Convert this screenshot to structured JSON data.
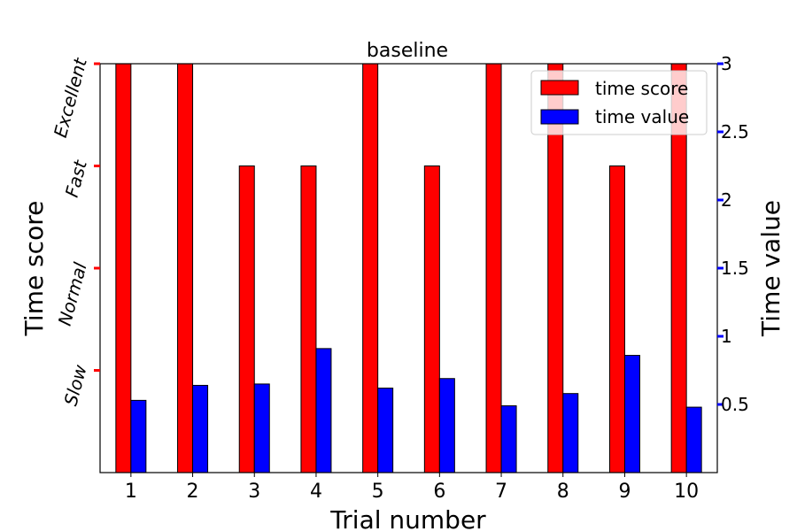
{
  "chart_data": {
    "type": "bar",
    "title": "baseline",
    "xlabel": "Trial number",
    "ylabel_left": "Time score",
    "ylabel_right": "Time value",
    "categories": [
      "1",
      "2",
      "3",
      "4",
      "5",
      "6",
      "7",
      "8",
      "9",
      "10"
    ],
    "left_axis": {
      "ylim": [
        0,
        4
      ],
      "ticks": [
        1,
        2,
        3,
        4
      ],
      "tick_labels": [
        "Slow",
        "Normal",
        "Fast",
        "Excellent"
      ],
      "tick_color": "#ff0000"
    },
    "right_axis": {
      "ylim": [
        0,
        3
      ],
      "ticks": [
        0.5,
        1,
        1.5,
        2,
        2.5,
        3
      ],
      "tick_labels": [
        "0.5",
        "1",
        "1.5",
        "2",
        "2.5",
        "3"
      ],
      "tick_color": "#0000ff"
    },
    "series": [
      {
        "name": "time score",
        "axis": "left",
        "color": "#ff0000",
        "values": [
          4,
          4,
          3,
          3,
          4,
          3,
          4,
          4,
          3,
          4
        ]
      },
      {
        "name": "time value",
        "axis": "right",
        "color": "#0000ff",
        "values": [
          0.53,
          0.64,
          0.65,
          0.91,
          0.62,
          0.69,
          0.49,
          0.58,
          0.86,
          0.48
        ]
      }
    ],
    "legend_position": "top-right",
    "grid": false
  }
}
